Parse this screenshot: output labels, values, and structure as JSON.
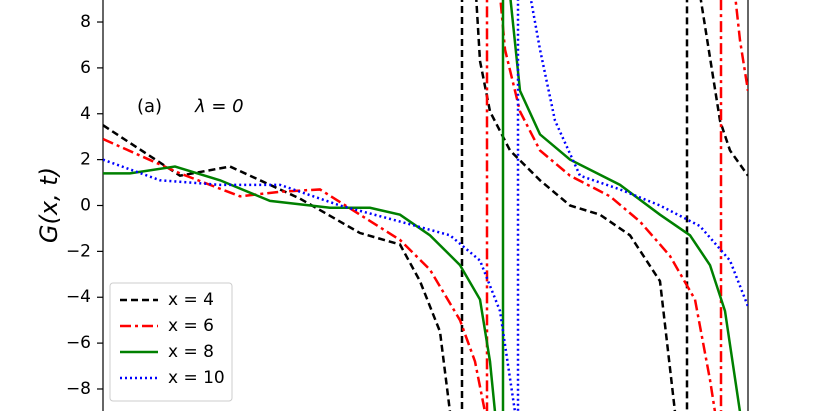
{
  "chart_data": {
    "type": "line",
    "ylabel": "G(x, t)",
    "panel_label": "(a)",
    "annotation": "λ = 0",
    "xlim": [
      0,
      645
    ],
    "ylim": [
      -8.96,
      8.96
    ],
    "yticks": [
      {
        "value": -8,
        "label": "−8"
      },
      {
        "value": -6,
        "label": "−6"
      },
      {
        "value": -4,
        "label": "−4"
      },
      {
        "value": -2,
        "label": "−2"
      },
      0,
      2,
      4,
      6,
      8
    ],
    "legend": "lower left",
    "series": [
      {
        "name": "x = 4",
        "color": "#000000",
        "style": "dashed",
        "x": [
          0,
          77,
          127,
          197,
          217,
          257,
          297,
          317,
          337,
          347,
          359,
          359,
          373,
          377,
          387,
          407,
          437,
          467,
          497,
          527,
          557,
          572,
          584,
          584,
          597,
          617,
          627,
          645
        ],
        "values": [
          3.5,
          1.3,
          1.7,
          0.3,
          -0.2,
          -1.2,
          -1.7,
          -3.3,
          -5.5,
          -9,
          -9.2,
          9.2,
          9.2,
          6.3,
          4.1,
          2.4,
          1.1,
          0,
          -0.4,
          -1.3,
          -3.3,
          -9,
          -9.2,
          9.2,
          9.2,
          3.7,
          2.4,
          1.3
        ]
      },
      {
        "name": "x = 6",
        "color": "#ff0000",
        "style": "dashdot",
        "x": [
          0,
          77,
          137,
          177,
          217,
          257,
          297,
          327,
          357,
          372,
          382,
          384,
          384,
          397,
          402,
          417,
          437,
          467,
          507,
          537,
          567,
          592,
          607,
          612,
          618,
          618,
          632,
          637,
          645
        ],
        "values": [
          2.9,
          1.4,
          0.4,
          0.6,
          0.7,
          -0.4,
          -1.5,
          -2.8,
          -5,
          -6.8,
          -9,
          -9.2,
          9.2,
          9.2,
          6.8,
          4.1,
          2.4,
          1.3,
          0.4,
          -0.7,
          -2.2,
          -4.1,
          -7.6,
          -9,
          -9.2,
          9.2,
          9.2,
          7.2,
          5
        ]
      },
      {
        "name": "x = 8",
        "color": "#008000",
        "style": "solid",
        "x": [
          0,
          27,
          72,
          117,
          167,
          227,
          267,
          297,
          327,
          357,
          377,
          387,
          392,
          400,
          400,
          407,
          417,
          437,
          467,
          517,
          557,
          587,
          607,
          622,
          637
        ],
        "values": [
          1.4,
          1.4,
          1.7,
          1.1,
          0.2,
          -0.1,
          -0.1,
          -0.4,
          -1.3,
          -2.6,
          -4.1,
          -6.8,
          -9,
          -9.2,
          9.2,
          9.2,
          5,
          3.1,
          2,
          0.9,
          -0.4,
          -1.3,
          -2.6,
          -4.6,
          -9
        ]
      },
      {
        "name": "x = 10",
        "color": "#0000ff",
        "style": "dotted",
        "x": [
          0,
          57,
          117,
          177,
          237,
          297,
          347,
          377,
          397,
          412,
          415,
          415,
          427,
          437,
          452,
          477,
          517,
          557,
          597,
          627,
          645
        ],
        "values": [
          2,
          1.1,
          0.9,
          0.9,
          0,
          -0.7,
          -1.3,
          -2.4,
          -4.6,
          -9,
          -9.2,
          9.2,
          9.2,
          6.8,
          3.7,
          1.3,
          0.7,
          0,
          -0.9,
          -2.4,
          -4.4
        ]
      }
    ]
  }
}
